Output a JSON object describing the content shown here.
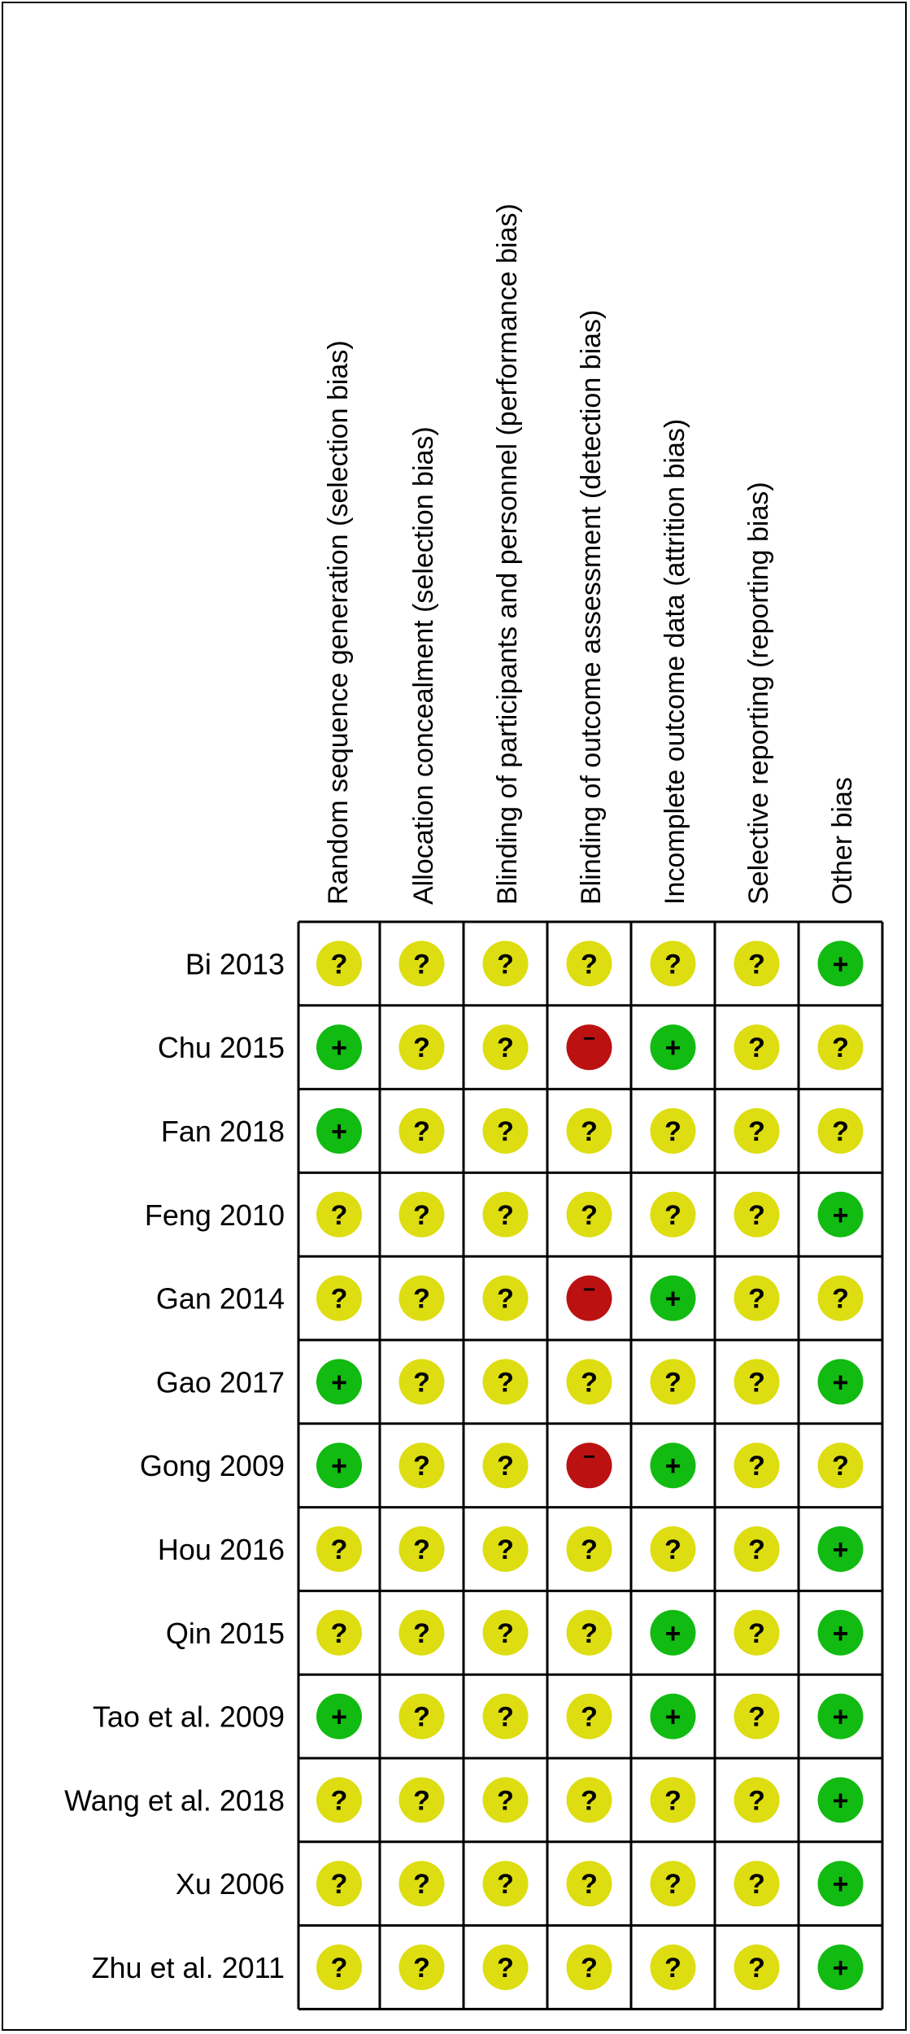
{
  "chart_data": {
    "type": "table",
    "columns": [
      "Random sequence generation (selection bias)",
      "Allocation concealment (selection bias)",
      "Blinding of participants and personnel (performance bias)",
      "Blinding of outcome assessment (detection bias)",
      "Incomplete outcome data (attrition bias)",
      "Selective reporting (reporting bias)",
      "Other bias"
    ],
    "rows": [
      "Bi 2013",
      "Chu 2015",
      "Fan 2018",
      "Feng 2010",
      "Gan 2014",
      "Gao 2017",
      "Gong 2009",
      "Hou 2016",
      "Qin 2015",
      "Tao et al. 2009",
      "Wang et al. 2018",
      "Xu 2006",
      "Zhu et al. 2011"
    ],
    "values": [
      [
        "?",
        "?",
        "?",
        "?",
        "?",
        "?",
        "+"
      ],
      [
        "+",
        "?",
        "?",
        "-",
        "+",
        "?",
        "?"
      ],
      [
        "+",
        "?",
        "?",
        "?",
        "?",
        "?",
        "?"
      ],
      [
        "?",
        "?",
        "?",
        "?",
        "?",
        "?",
        "+"
      ],
      [
        "?",
        "?",
        "?",
        "-",
        "+",
        "?",
        "?"
      ],
      [
        "+",
        "?",
        "?",
        "?",
        "?",
        "?",
        "+"
      ],
      [
        "+",
        "?",
        "?",
        "-",
        "+",
        "?",
        "?"
      ],
      [
        "?",
        "?",
        "?",
        "?",
        "?",
        "?",
        "+"
      ],
      [
        "?",
        "?",
        "?",
        "?",
        "+",
        "?",
        "+"
      ],
      [
        "+",
        "?",
        "?",
        "?",
        "+",
        "?",
        "+"
      ],
      [
        "?",
        "?",
        "?",
        "?",
        "?",
        "?",
        "+"
      ],
      [
        "?",
        "?",
        "?",
        "?",
        "?",
        "?",
        "+"
      ],
      [
        "?",
        "?",
        "?",
        "?",
        "?",
        "?",
        "+"
      ]
    ],
    "symbols": {
      "+": {
        "color": "#11bb11",
        "glyph": "+"
      },
      "?": {
        "color": "#dddd11",
        "glyph": "?"
      },
      "-": {
        "color": "#bb1111",
        "glyph": "−"
      }
    }
  }
}
